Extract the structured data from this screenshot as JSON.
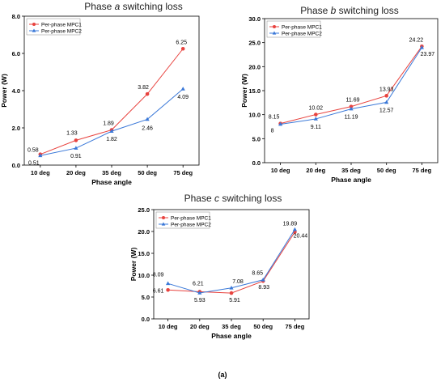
{
  "figure_label": "(a)",
  "colors": {
    "mpc1": "#e8433f",
    "mpc2": "#3a78d8",
    "axis": "#000000"
  },
  "chart_data": [
    {
      "type": "line",
      "title_prefix": "Phase ",
      "title_italic": "a",
      "title_suffix": " switching loss",
      "xlabel": "Phase angle",
      "ylabel": "Power (W)",
      "categories": [
        "10 deg",
        "20 deg",
        "35 deg",
        "50 deg",
        "75 deg"
      ],
      "ylim": [
        0,
        8
      ],
      "yticks": [
        "0.0",
        "2.0",
        "4.0",
        "6.0",
        "8.0"
      ],
      "ytick_values": [
        0,
        2,
        4,
        6,
        8
      ],
      "legend_position": "top-left",
      "series": [
        {
          "name": "Per-phase MPC1",
          "values": [
            0.58,
            1.33,
            1.89,
            3.82,
            6.25
          ],
          "labels": [
            "0.58",
            "1.33",
            "1.89",
            "3.82",
            "6.25"
          ]
        },
        {
          "name": "Per-phase MPC2",
          "values": [
            0.51,
            0.91,
            1.82,
            2.46,
            4.09
          ],
          "labels": [
            "0.51",
            "0.91",
            "1.82",
            "2.46",
            "4.09"
          ]
        }
      ]
    },
    {
      "type": "line",
      "title_prefix": "Phase ",
      "title_italic": "b",
      "title_suffix": " switching loss",
      "xlabel": "Phase angle",
      "ylabel": "Power (W)",
      "categories": [
        "10 deg",
        "20 deg",
        "35 deg",
        "50 deg",
        "75 deg"
      ],
      "ylim": [
        0,
        30
      ],
      "yticks": [
        "0.0",
        "5.0",
        "10.0",
        "15.0",
        "20.0",
        "25.0",
        "30.0"
      ],
      "ytick_values": [
        0,
        5,
        10,
        15,
        20,
        25,
        30
      ],
      "legend_position": "top-left",
      "series": [
        {
          "name": "Per-phase MPC1",
          "values": [
            8.15,
            10.02,
            11.69,
            13.93,
            24.22
          ],
          "labels": [
            "8.15",
            "10.02",
            "11.69",
            "13.93",
            "24.22"
          ]
        },
        {
          "name": "Per-phase MPC2",
          "values": [
            8.0,
            9.11,
            11.19,
            12.57,
            23.97
          ],
          "labels": [
            "8",
            "9.11",
            "11.19",
            "12.57",
            "23.97"
          ]
        }
      ]
    },
    {
      "type": "line",
      "title_prefix": "Phase ",
      "title_italic": "c",
      "title_suffix": " switching loss",
      "xlabel": "Phase angle",
      "ylabel": "Power (W)",
      "categories": [
        "10 deg",
        "20 deg",
        "35 deg",
        "50 deg",
        "75 deg"
      ],
      "ylim": [
        0,
        25
      ],
      "yticks": [
        "0.0",
        "5.0",
        "10.0",
        "15.0",
        "20.0",
        "25.0"
      ],
      "ytick_values": [
        0,
        5,
        10,
        15,
        20,
        25
      ],
      "legend_position": "top-left",
      "series": [
        {
          "name": "Per-phase MPC1",
          "values": [
            6.61,
            6.21,
            5.91,
            8.65,
            19.89
          ],
          "labels": [
            "6.61",
            "6.21",
            "5.91",
            "8.65",
            "19.89"
          ]
        },
        {
          "name": "Per-phase MPC2",
          "values": [
            8.09,
            5.93,
            7.08,
            8.93,
            20.44
          ],
          "labels": [
            "8.09",
            "5.93",
            "7.08",
            "8.93",
            "20.44"
          ]
        }
      ]
    }
  ]
}
